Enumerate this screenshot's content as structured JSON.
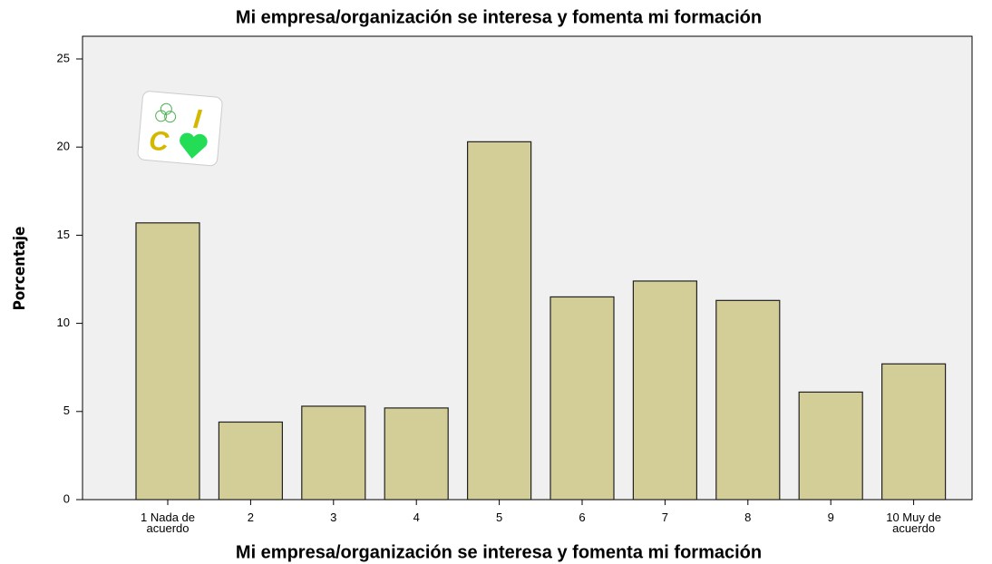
{
  "chart_data": {
    "type": "bar",
    "title": "Mi empresa/organización se interesa y fomenta mi formación",
    "x_label": "Mi empresa/organización se interesa y fomenta mi formación",
    "y_label": "Porcentaje",
    "categories": [
      "1 Nada de acuerdo",
      "2",
      "3",
      "4",
      "5",
      "6",
      "7",
      "8",
      "9",
      "10 Muy de acuerdo"
    ],
    "values": [
      15.7,
      4.4,
      5.3,
      5.2,
      20.3,
      11.5,
      12.4,
      11.3,
      6.1,
      7.7
    ],
    "color": "#d3cd97",
    "ylim": [
      0,
      25
    ],
    "yticks": [
      0,
      5,
      10,
      15,
      20,
      25
    ],
    "grid": false
  },
  "logo": {
    "letters": [
      "I",
      "C"
    ]
  }
}
